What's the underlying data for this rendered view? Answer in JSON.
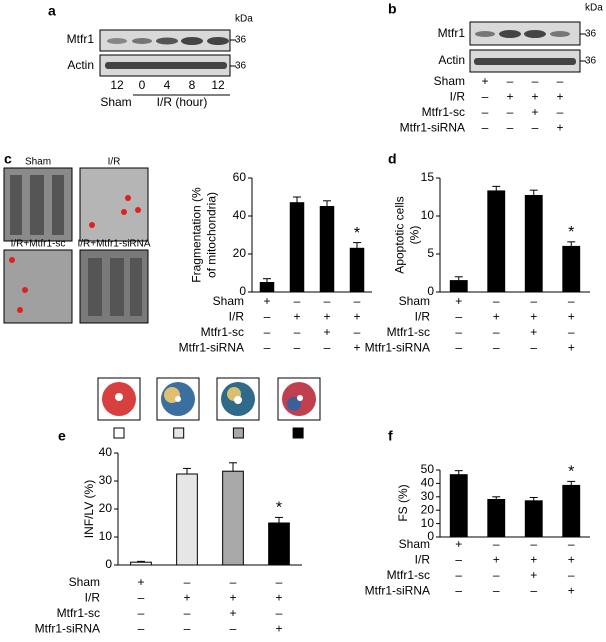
{
  "blot_a": {
    "panel": "a",
    "rows": [
      "Mtfr1",
      "Actin"
    ],
    "unit": "kDa",
    "markers": [
      "36",
      "36"
    ],
    "lanes": [
      "12",
      "0",
      "4",
      "8",
      "12"
    ],
    "groups": [
      "Sham",
      "I/R (hour)"
    ]
  },
  "blot_b": {
    "panel": "b",
    "rows": [
      "Mtfr1",
      "Actin"
    ],
    "unit": "kDa",
    "markers": [
      "36",
      "36"
    ],
    "conditions": [
      {
        "label": "Sham",
        "marks": [
          "+",
          "–",
          "–",
          "–"
        ]
      },
      {
        "label": "I/R",
        "marks": [
          "–",
          "+",
          "+",
          "+"
        ]
      },
      {
        "label": "Mtfr1-sc",
        "marks": [
          "–",
          "–",
          "+",
          "–"
        ]
      },
      {
        "label": "Mtfr1-siRNA",
        "marks": [
          "–",
          "–",
          "–",
          "+"
        ]
      }
    ]
  },
  "images_c": {
    "labels": [
      "Sham",
      "I/R",
      "I/R+Mtfr1-sc",
      "I/R+Mtfr1-siRNA"
    ]
  },
  "chart_data": [
    {
      "type": "bar",
      "panel": "c",
      "ylabel": [
        "Fragmentation (%",
        "of mitochondria)"
      ],
      "values": [
        5,
        47,
        45,
        23
      ],
      "errors": [
        2,
        3,
        3,
        3
      ],
      "significance": [
        null,
        null,
        null,
        "*"
      ],
      "colors": [
        "#000000",
        "#000000",
        "#000000",
        "#000000"
      ],
      "ylim": [
        0,
        60
      ],
      "yticks": [
        0,
        20,
        40,
        60
      ],
      "conditions": [
        {
          "label": "Sham",
          "marks": [
            "+",
            "–",
            "–",
            "–"
          ]
        },
        {
          "label": "I/R",
          "marks": [
            "–",
            "+",
            "+",
            "+"
          ]
        },
        {
          "label": "Mtfr1-sc",
          "marks": [
            "–",
            "–",
            "+",
            "–"
          ]
        },
        {
          "label": "Mtfr1-siRNA",
          "marks": [
            "–",
            "–",
            "–",
            "+"
          ]
        }
      ]
    },
    {
      "type": "bar",
      "panel": "d",
      "ylabel": [
        "Apoptotic cells",
        "(%)"
      ],
      "values": [
        1.5,
        13.3,
        12.7,
        6
      ],
      "errors": [
        0.5,
        0.6,
        0.7,
        0.6
      ],
      "significance": [
        null,
        null,
        null,
        "*"
      ],
      "colors": [
        "#000000",
        "#000000",
        "#000000",
        "#000000"
      ],
      "ylim": [
        0,
        15
      ],
      "yticks": [
        0,
        5,
        10,
        15
      ],
      "conditions": [
        {
          "label": "Sham",
          "marks": [
            "+",
            "–",
            "–",
            "–"
          ]
        },
        {
          "label": "I/R",
          "marks": [
            "–",
            "+",
            "+",
            "+"
          ]
        },
        {
          "label": "Mtfr1-sc",
          "marks": [
            "–",
            "–",
            "+",
            "–"
          ]
        },
        {
          "label": "Mtfr1-siRNA",
          "marks": [
            "–",
            "–",
            "–",
            "+"
          ]
        }
      ]
    },
    {
      "type": "bar",
      "panel": "e",
      "ylabel": [
        "INF/LV (%)"
      ],
      "values": [
        1,
        32.5,
        33.5,
        15
      ],
      "errors": [
        0.3,
        2,
        3,
        2
      ],
      "significance": [
        null,
        null,
        null,
        "*"
      ],
      "colors": [
        "#ffffff",
        "#e6e6e6",
        "#a8a8a8",
        "#000000"
      ],
      "ylim": [
        0,
        40
      ],
      "yticks": [
        0,
        10,
        20,
        30,
        40
      ],
      "conditions": [
        {
          "label": "Sham",
          "marks": [
            "+",
            "–",
            "–",
            "–"
          ]
        },
        {
          "label": "I/R",
          "marks": [
            "–",
            "+",
            "+",
            "+"
          ]
        },
        {
          "label": "Mtfr1-sc",
          "marks": [
            "–",
            "–",
            "+",
            "–"
          ]
        },
        {
          "label": "Mtfr1-siRNA",
          "marks": [
            "–",
            "–",
            "–",
            "+"
          ]
        }
      ]
    },
    {
      "type": "bar",
      "panel": "f",
      "ylabel": [
        "FS (%)"
      ],
      "values": [
        46.5,
        28,
        27,
        38.5
      ],
      "errors": [
        3,
        2,
        2.5,
        3
      ],
      "significance": [
        null,
        null,
        null,
        "*"
      ],
      "colors": [
        "#000000",
        "#000000",
        "#000000",
        "#000000"
      ],
      "ylim": [
        0,
        50
      ],
      "yticks": [
        0,
        10,
        20,
        30,
        40,
        50
      ],
      "conditions": [
        {
          "label": "Sham",
          "marks": [
            "+",
            "–",
            "–",
            "–"
          ]
        },
        {
          "label": "I/R",
          "marks": [
            "–",
            "+",
            "+",
            "+"
          ]
        },
        {
          "label": "Mtfr1-sc",
          "marks": [
            "–",
            "–",
            "+",
            "–"
          ]
        },
        {
          "label": "Mtfr1-siRNA",
          "marks": [
            "–",
            "–",
            "–",
            "+"
          ]
        }
      ]
    }
  ]
}
